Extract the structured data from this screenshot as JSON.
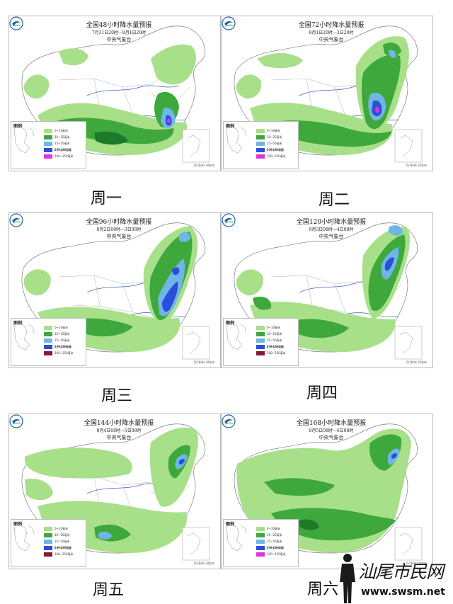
{
  "colors": {
    "light_green": "#a8e08a",
    "mid_green": "#3ea83c",
    "dark_green": "#1e7a2b",
    "light_blue": "#6fb6e6",
    "blue": "#2b4fd8",
    "magenta": "#e034d6",
    "maroon": "#8a1538",
    "border": "#7d7d7d",
    "river": "#3f62b8"
  },
  "maps": [
    {
      "day_label": "周一",
      "title": "全国48小时降水量预报",
      "subtitle": "7月31日20时—8月1日20时",
      "agency": "中央气象台",
      "footer": "月/(发布) 时发布",
      "legend_title": "图例",
      "legend_items": [
        "0~10毫米",
        "10~25毫米",
        "25~50毫米",
        "50~100毫米",
        "100~250毫米"
      ],
      "legend_center": "× 降水中心值"
    },
    {
      "day_label": "周二",
      "title": "全国72小时降水量预报",
      "subtitle": "8月1日20时—2日20时",
      "agency": "中央气象台",
      "footer": "月/(发布) 时发布",
      "legend_title": "图例",
      "legend_items": [
        "0~10毫米",
        "10~25毫米",
        "25~50毫米",
        "50~100毫米",
        "100~250毫米"
      ],
      "legend_center": "× 降水中心值"
    },
    {
      "day_label": "周三",
      "title": "全国96小时降水量预报",
      "subtitle": "8月2日08时—3日08时",
      "agency": "中央气象台",
      "footer": "月/(发布) 时发布",
      "legend_title": "图例",
      "legend_items": [
        "0~10毫米",
        "10~25毫米",
        "25~50毫米",
        "50~100毫米",
        "100~250毫米"
      ],
      "legend_center": "× 降水中心值"
    },
    {
      "day_label": "周四",
      "title": "全国120小时降水量预报",
      "subtitle": "8月3日08时—4日08时",
      "agency": "中央气象台",
      "footer": "月/(发布) 时发布",
      "legend_title": "图例",
      "legend_items": [
        "0~10毫米",
        "10~25毫米",
        "25~50毫米",
        "50~100毫米",
        "100~250毫米"
      ],
      "legend_center": "× 降水中心值"
    },
    {
      "day_label": "周五",
      "title": "全国144小时降水量预报",
      "subtitle": "8月4日08时—5日08时",
      "agency": "中央气象台",
      "footer": "月/(发布) 时发布",
      "legend_title": "图例",
      "legend_items": [
        "0~10毫米",
        "10~25毫米",
        "25~50毫米",
        "50~100毫米",
        "100~250毫米"
      ],
      "legend_center": "× 降水中心值"
    },
    {
      "day_label": "周六",
      "title": "全国168小时降水量预报",
      "subtitle": "8月5日08时—6日08时",
      "agency": "中央气象台",
      "footer": "月/(发布) 时发布",
      "legend_title": "图例",
      "legend_items": [
        "0~10毫米",
        "10~25毫米",
        "25~50毫米",
        "50~100毫米",
        "100~250毫米"
      ],
      "legend_center": "× 降水中心值"
    }
  ],
  "watermark": {
    "text": "汕尾市民网",
    "url": "www.swsm.net"
  }
}
